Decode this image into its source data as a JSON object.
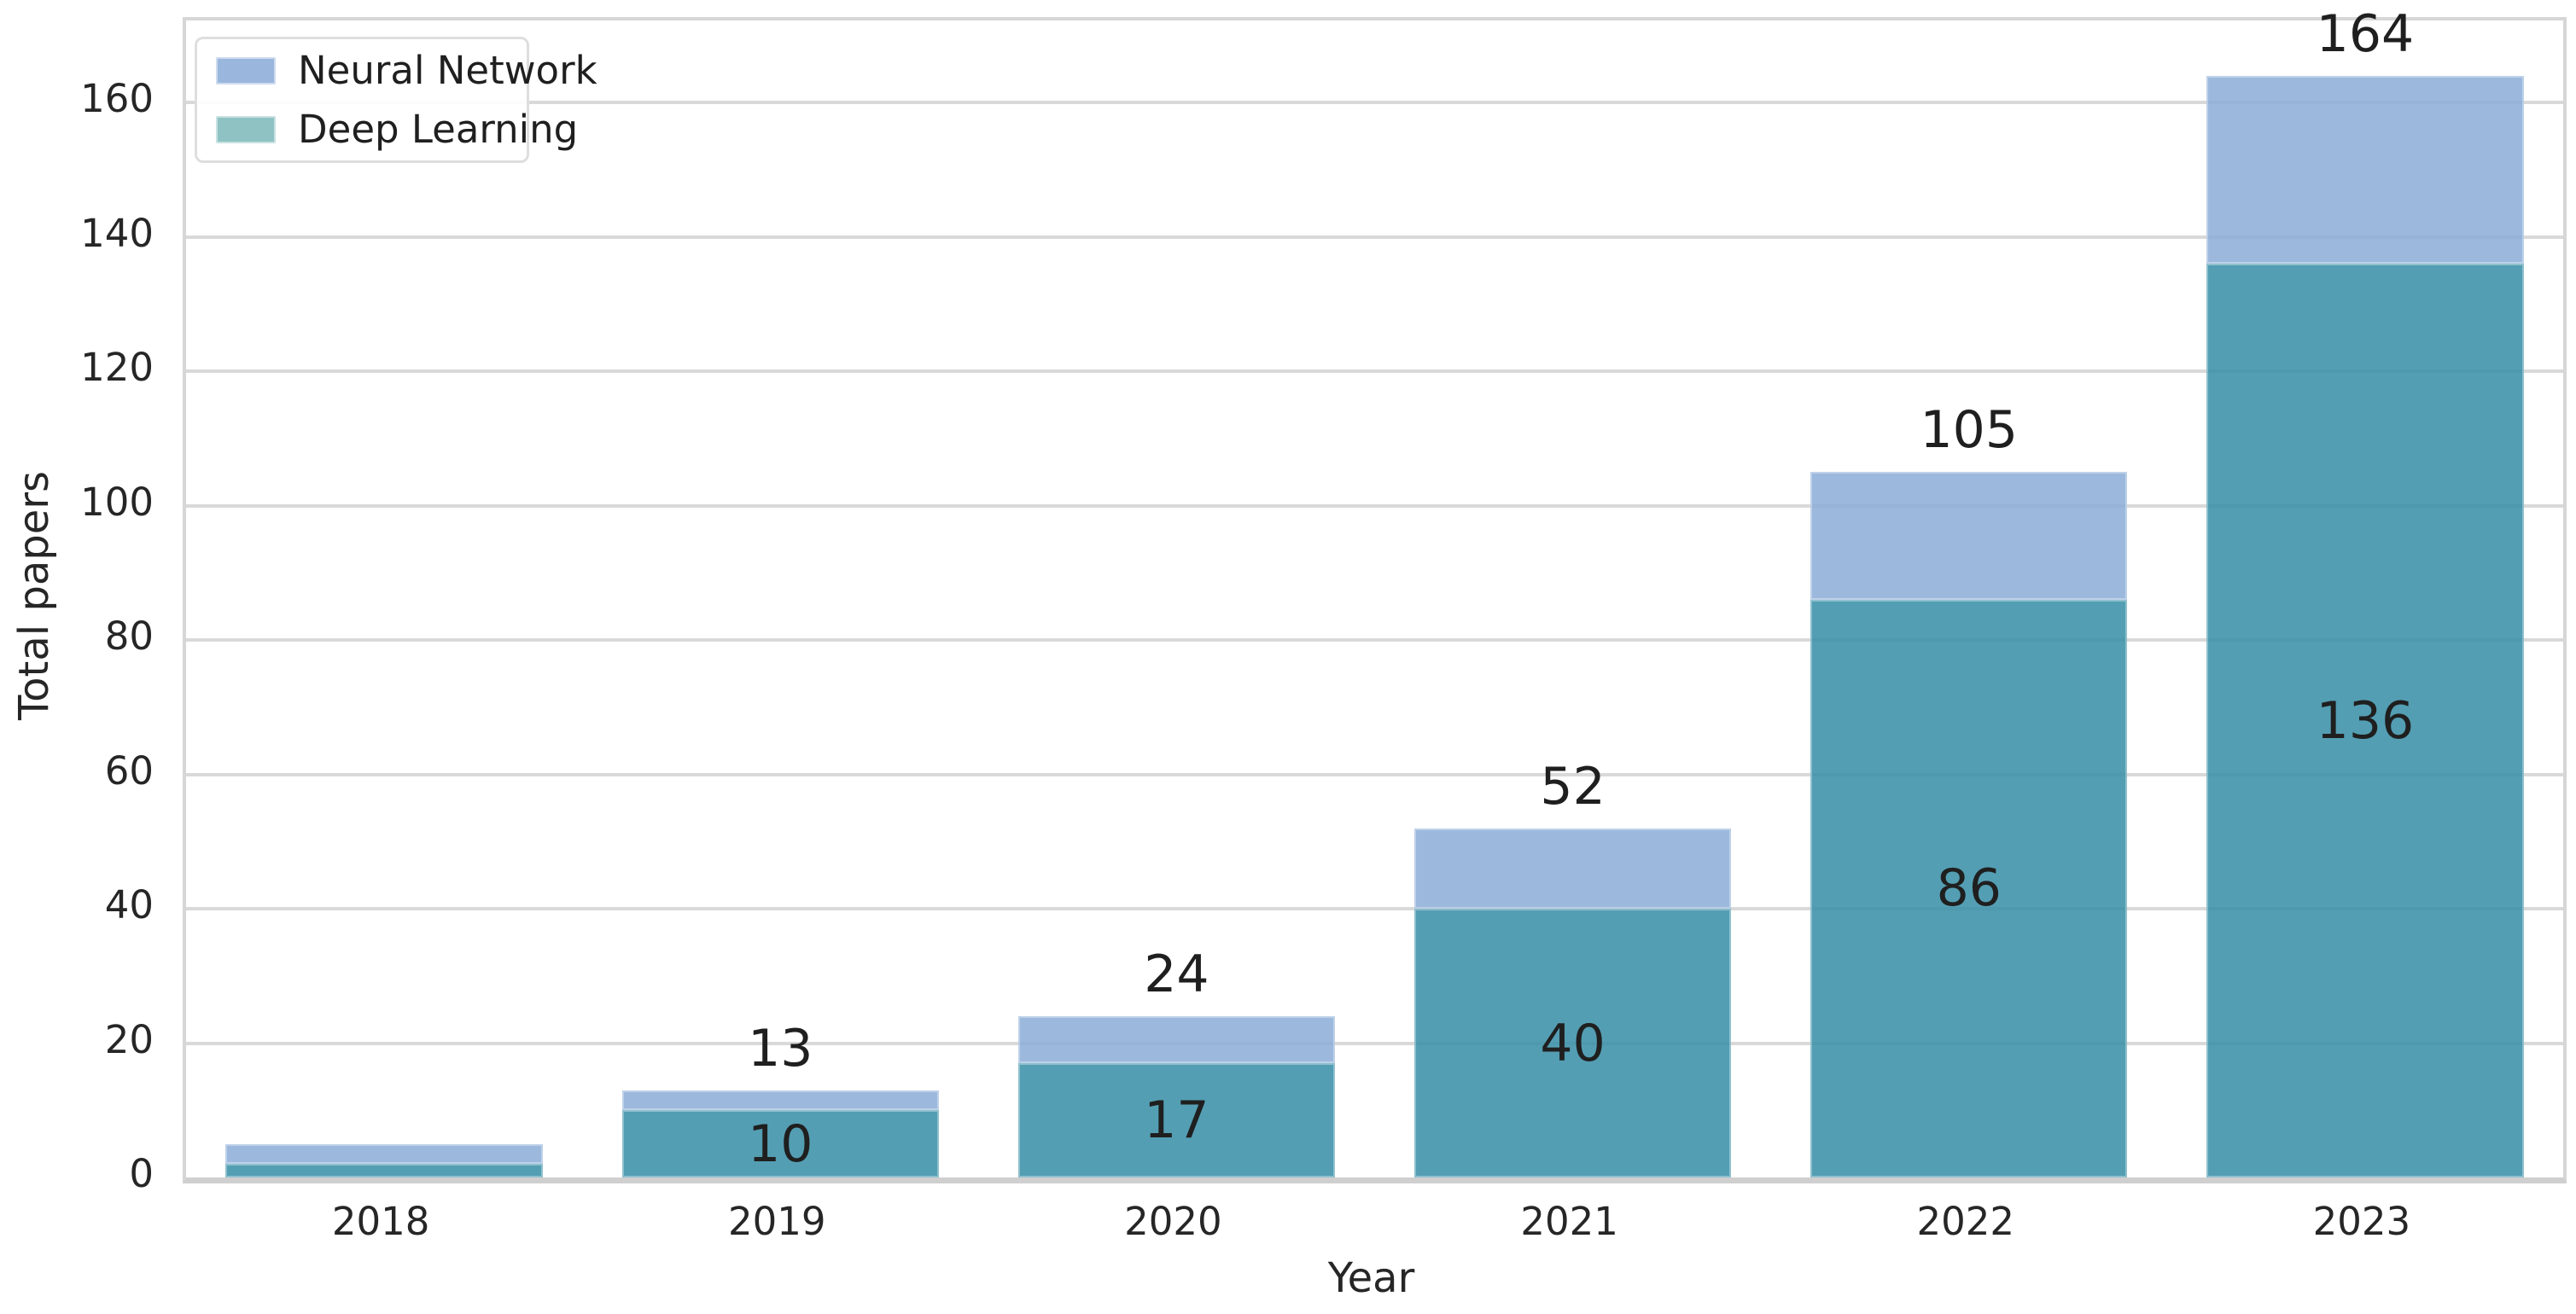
{
  "chart_data": {
    "type": "bar",
    "stacked": true,
    "categories": [
      "2018",
      "2019",
      "2020",
      "2021",
      "2022",
      "2023"
    ],
    "series": [
      {
        "name": "Deep Learning",
        "color": "rgba(54,141,166,0.85)",
        "values": [
          2,
          10,
          17,
          40,
          86,
          136
        ],
        "segment_labels": [
          "",
          "10",
          "17",
          "40",
          "86",
          "136"
        ]
      },
      {
        "name": "Neural Network",
        "color": "rgba(139,173,215,0.85)",
        "values": [
          3,
          3,
          7,
          12,
          19,
          28
        ],
        "segment_labels": [
          "",
          "",
          "",
          "",
          "",
          ""
        ]
      }
    ],
    "stack_totals": [
      5,
      13,
      24,
      52,
      105,
      164
    ],
    "total_labels": [
      "",
      "13",
      "24",
      "52",
      "105",
      "164"
    ],
    "xlabel": "Year",
    "ylabel": "Total papers",
    "yticks": [
      0,
      20,
      40,
      60,
      80,
      100,
      120,
      140,
      160
    ],
    "ylim": [
      0,
      172.2
    ],
    "grid": "horizontal-only",
    "legend_position": "upper-left",
    "bar_width_fraction": 0.8
  },
  "legend": {
    "items": [
      {
        "label": "Neural Network",
        "swatch": "#9ab6dc"
      },
      {
        "label": "Deep Learning",
        "swatch": "#8fc2c3"
      }
    ]
  },
  "colors": {
    "background": "#ffffff",
    "gridline": "#d9d9d9",
    "spine": "#d6d6d6",
    "text": "#262626",
    "bar_deep_learning": "#549eb3",
    "bar_neural_network": "#9cb9dd"
  }
}
